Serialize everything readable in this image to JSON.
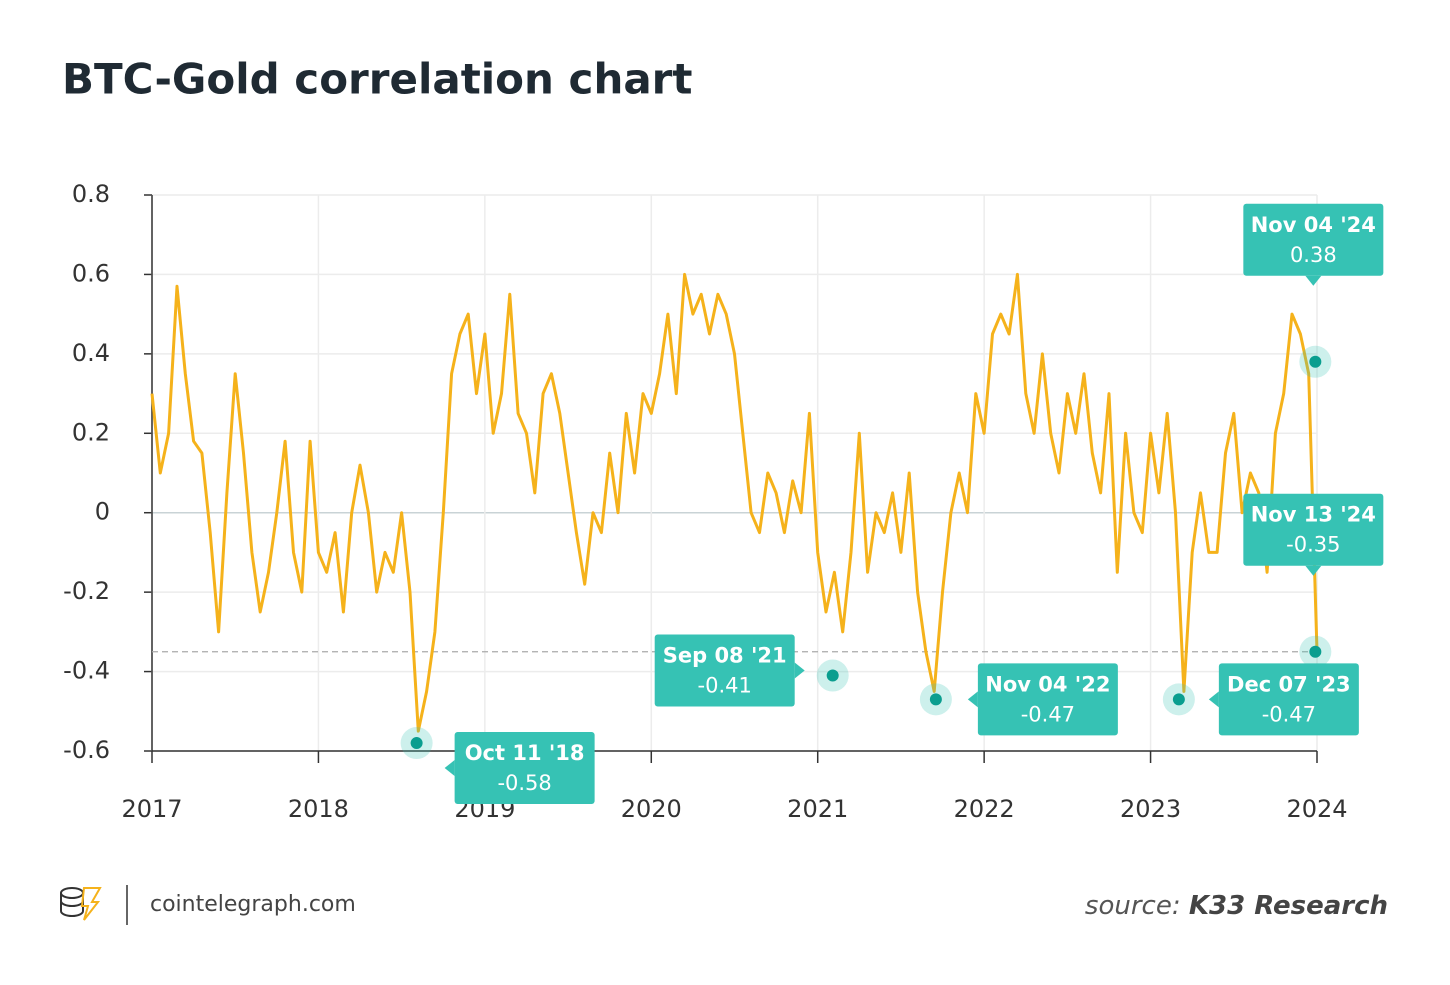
{
  "chart_data": {
    "type": "line",
    "title": "BTC-Gold correlation chart",
    "x": [
      2017,
      2017.05,
      2017.1,
      2017.15,
      2017.2,
      2017.25,
      2017.3,
      2017.35,
      2017.4,
      2017.45,
      2017.5,
      2017.55,
      2017.6,
      2017.65,
      2017.7,
      2017.75,
      2017.8,
      2017.85,
      2017.9,
      2017.95,
      2018,
      2018.05,
      2018.1,
      2018.15,
      2018.2,
      2018.25,
      2018.3,
      2018.35,
      2018.4,
      2018.45,
      2018.5,
      2018.55,
      2018.6,
      2018.65,
      2018.7,
      2018.75,
      2018.8,
      2018.85,
      2018.9,
      2018.95,
      2019,
      2019.05,
      2019.1,
      2019.15,
      2019.2,
      2019.25,
      2019.3,
      2019.35,
      2019.4,
      2019.45,
      2019.5,
      2019.55,
      2019.6,
      2019.65,
      2019.7,
      2019.75,
      2019.8,
      2019.85,
      2019.9,
      2019.95,
      2020,
      2020.05,
      2020.1,
      2020.15,
      2020.2,
      2020.25,
      2020.3,
      2020.35,
      2020.4,
      2020.45,
      2020.5,
      2020.55,
      2020.6,
      2020.65,
      2020.7,
      2020.75,
      2020.8,
      2020.85,
      2020.9,
      2020.95,
      2021,
      2021.05,
      2021.1,
      2021.15,
      2021.2,
      2021.25,
      2021.3,
      2021.35,
      2021.4,
      2021.45,
      2021.5,
      2021.55,
      2021.6,
      2021.65,
      2021.7,
      2021.75,
      2021.8,
      2021.85,
      2021.9,
      2021.95,
      2022,
      2022.05,
      2022.1,
      2022.15,
      2022.2,
      2022.25,
      2022.3,
      2022.35,
      2022.4,
      2022.45,
      2022.5,
      2022.55,
      2022.6,
      2022.65,
      2022.7,
      2022.75,
      2022.8,
      2022.85,
      2022.9,
      2022.95,
      2023,
      2023.05,
      2023.1,
      2023.15,
      2023.2,
      2023.25,
      2023.3,
      2023.35,
      2023.4,
      2023.45,
      2023.5,
      2023.55,
      2023.6,
      2023.65,
      2023.7,
      2023.75,
      2023.8,
      2023.85,
      2023.9,
      2023.95,
      2024
    ],
    "series": [
      {
        "color": "#f5b21b",
        "values": [
          0.3,
          0.1,
          0.2,
          0.57,
          0.35,
          0.18,
          0.15,
          -0.05,
          -0.3,
          0.05,
          0.35,
          0.15,
          -0.1,
          -0.25,
          -0.15,
          0.0,
          0.18,
          -0.1,
          -0.2,
          0.18,
          -0.1,
          -0.15,
          -0.05,
          -0.25,
          0.0,
          0.12,
          0.0,
          -0.2,
          -0.1,
          -0.15,
          0.0,
          -0.2,
          -0.55,
          -0.45,
          -0.3,
          0.0,
          0.35,
          0.45,
          0.5,
          0.3,
          0.45,
          0.2,
          0.3,
          0.55,
          0.25,
          0.2,
          0.05,
          0.3,
          0.35,
          0.25,
          0.1,
          -0.05,
          -0.18,
          0.0,
          -0.05,
          0.15,
          0.0,
          0.25,
          0.1,
          0.3,
          0.25,
          0.35,
          0.5,
          0.3,
          0.6,
          0.5,
          0.55,
          0.45,
          0.55,
          0.5,
          0.4,
          0.2,
          0.0,
          -0.05,
          0.1,
          0.05,
          -0.05,
          0.08,
          0.0,
          0.25,
          -0.1,
          -0.25,
          -0.15,
          -0.3,
          -0.1,
          0.2,
          -0.15,
          0.0,
          -0.05,
          0.05,
          -0.1,
          0.1,
          -0.2,
          -0.35,
          -0.45,
          -0.2,
          0.0,
          0.1,
          0.0,
          0.3,
          0.2,
          0.45,
          0.5,
          0.45,
          0.6,
          0.3,
          0.2,
          0.4,
          0.2,
          0.1,
          0.3,
          0.2,
          0.35,
          0.15,
          0.05,
          0.3,
          -0.15,
          0.2,
          0.0,
          -0.05,
          0.2,
          0.05,
          0.25,
          0.0,
          -0.45,
          -0.1,
          0.05,
          -0.1,
          -0.1,
          0.15,
          0.25,
          0.0,
          0.1,
          0.05,
          -0.15,
          0.2,
          0.3,
          0.5,
          0.45,
          0.35,
          -0.35
        ]
      }
    ],
    "xlim": [
      2017,
      2024
    ],
    "xticks": [
      2017,
      2018,
      2019,
      2020,
      2021,
      2022,
      2023,
      2024
    ],
    "ylim": [
      -0.6,
      0.8
    ],
    "yticks": [
      0.8,
      0.6,
      0.4,
      0.2,
      0,
      -0.2,
      -0.4,
      -0.6
    ],
    "grid": true,
    "reference_line": -0.35,
    "annotations": [
      {
        "label": "Oct 11 '18",
        "value": -0.58,
        "x": 2018.59
      },
      {
        "label": "Sep 08 '21",
        "value": -0.41,
        "x": 2021.09
      },
      {
        "label": "Nov 04 '22",
        "value": -0.47,
        "x": 2021.71
      },
      {
        "label": "Dec 07 '23",
        "value": -0.47,
        "x": 2023.17
      },
      {
        "label": "Nov 13 '24",
        "value": -0.35,
        "x": 2023.99
      },
      {
        "label": "Nov 04 '24",
        "value": 0.38,
        "x": 2023.99
      }
    ],
    "callout_color": "#36c2b4",
    "site": "cointelegraph.com",
    "source_prefix": "source:",
    "source": "K33 Research"
  }
}
